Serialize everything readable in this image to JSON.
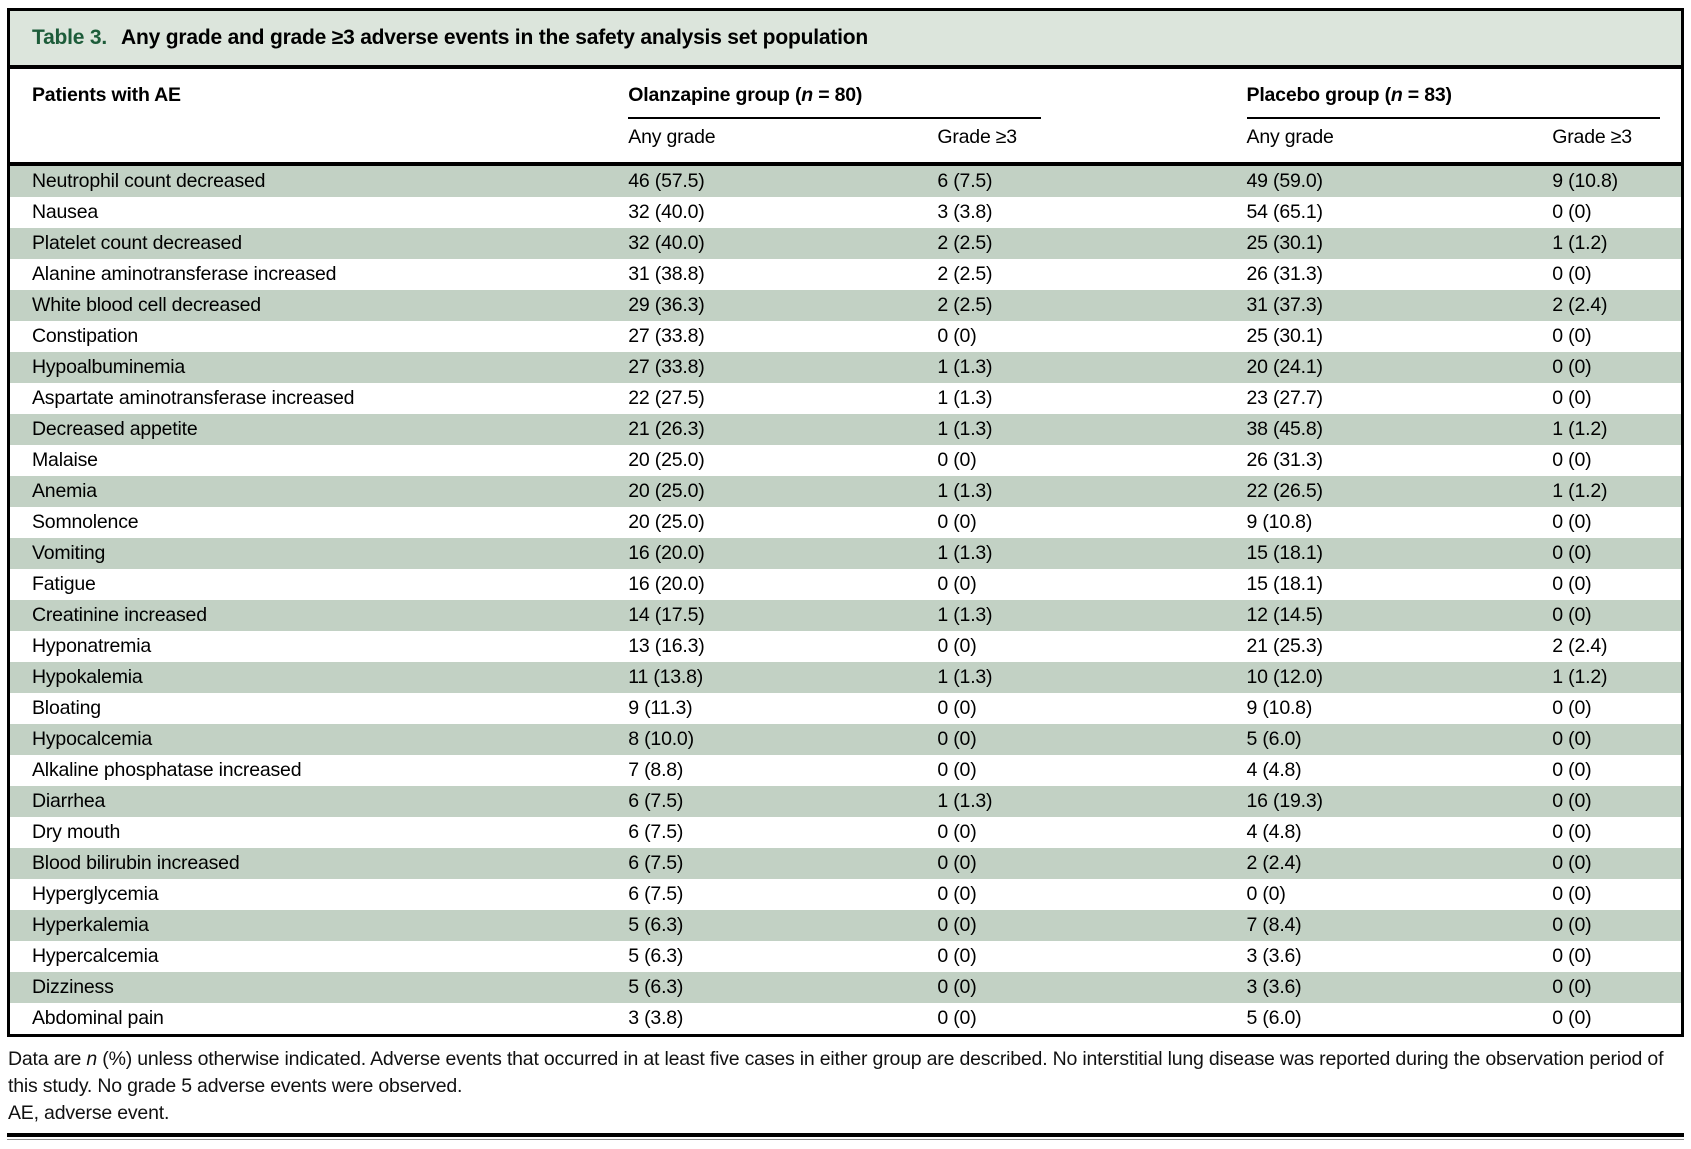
{
  "colors": {
    "accent_green": "#1d5c3a",
    "titlebar_bg": "#dce5dc",
    "row_green": "#c2d1c4",
    "border_black": "#000000"
  },
  "title": {
    "label": "Table 3.",
    "text": "Any grade and grade ≥3 adverse events in the safety analysis set population"
  },
  "header": {
    "col1": "Patients with AE",
    "groups": [
      {
        "prefix": "Olanzapine group (",
        "nvar": "n",
        "rest": " = 80)"
      },
      {
        "prefix": "Placebo group (",
        "nvar": "n",
        "rest": " = 83)"
      }
    ],
    "subheaders": [
      "Any grade",
      "Grade ≥3",
      "Any grade",
      "Grade ≥3"
    ]
  },
  "rows": [
    [
      "Neutrophil count decreased",
      "46 (57.5)",
      "6 (7.5)",
      "49 (59.0)",
      "9 (10.8)"
    ],
    [
      "Nausea",
      "32 (40.0)",
      "3 (3.8)",
      "54 (65.1)",
      "0 (0)"
    ],
    [
      "Platelet count decreased",
      "32 (40.0)",
      "2 (2.5)",
      "25 (30.1)",
      "1 (1.2)"
    ],
    [
      "Alanine aminotransferase increased",
      "31 (38.8)",
      "2 (2.5)",
      "26 (31.3)",
      "0 (0)"
    ],
    [
      "White blood cell decreased",
      "29 (36.3)",
      "2 (2.5)",
      "31 (37.3)",
      "2 (2.4)"
    ],
    [
      "Constipation",
      "27 (33.8)",
      "0 (0)",
      "25 (30.1)",
      "0 (0)"
    ],
    [
      "Hypoalbuminemia",
      "27 (33.8)",
      "1 (1.3)",
      "20 (24.1)",
      "0 (0)"
    ],
    [
      "Aspartate aminotransferase increased",
      "22 (27.5)",
      "1 (1.3)",
      "23 (27.7)",
      "0 (0)"
    ],
    [
      "Decreased appetite",
      "21 (26.3)",
      "1 (1.3)",
      "38 (45.8)",
      "1 (1.2)"
    ],
    [
      "Malaise",
      "20 (25.0)",
      "0 (0)",
      "26 (31.3)",
      "0 (0)"
    ],
    [
      "Anemia",
      "20 (25.0)",
      "1 (1.3)",
      "22 (26.5)",
      "1 (1.2)"
    ],
    [
      "Somnolence",
      "20 (25.0)",
      "0 (0)",
      "9 (10.8)",
      "0 (0)"
    ],
    [
      "Vomiting",
      "16 (20.0)",
      "1 (1.3)",
      "15 (18.1)",
      "0 (0)"
    ],
    [
      "Fatigue",
      "16 (20.0)",
      "0 (0)",
      "15 (18.1)",
      "0 (0)"
    ],
    [
      "Creatinine increased",
      "14 (17.5)",
      "1 (1.3)",
      "12 (14.5)",
      "0 (0)"
    ],
    [
      "Hyponatremia",
      "13 (16.3)",
      "0 (0)",
      "21 (25.3)",
      "2 (2.4)"
    ],
    [
      "Hypokalemia",
      "11 (13.8)",
      "1 (1.3)",
      "10 (12.0)",
      "1 (1.2)"
    ],
    [
      "Bloating",
      "9 (11.3)",
      "0 (0)",
      "9 (10.8)",
      "0 (0)"
    ],
    [
      "Hypocalcemia",
      "8 (10.0)",
      "0 (0)",
      "5 (6.0)",
      "0 (0)"
    ],
    [
      "Alkaline phosphatase increased",
      "7 (8.8)",
      "0 (0)",
      "4 (4.8)",
      "0 (0)"
    ],
    [
      "Diarrhea",
      "6 (7.5)",
      "1 (1.3)",
      "16 (19.3)",
      "0 (0)"
    ],
    [
      "Dry mouth",
      "6 (7.5)",
      "0 (0)",
      "4 (4.8)",
      "0 (0)"
    ],
    [
      "Blood bilirubin increased",
      "6 (7.5)",
      "0 (0)",
      "2 (2.4)",
      "0 (0)"
    ],
    [
      "Hyperglycemia",
      "6 (7.5)",
      "0 (0)",
      "0 (0)",
      "0 (0)"
    ],
    [
      "Hyperkalemia",
      "5 (6.3)",
      "0 (0)",
      "7 (8.4)",
      "0 (0)"
    ],
    [
      "Hypercalcemia",
      "5 (6.3)",
      "0 (0)",
      "3 (3.6)",
      "0 (0)"
    ],
    [
      "Dizziness",
      "5 (6.3)",
      "0 (0)",
      "3 (3.6)",
      "0 (0)"
    ],
    [
      "Abdominal pain",
      "3 (3.8)",
      "0 (0)",
      "5 (6.0)",
      "0 (0)"
    ]
  ],
  "footnotes": {
    "line1_pre": "Data are ",
    "line1_n": "n",
    "line1_post": " (%) unless otherwise indicated. Adverse events that occurred in at least five cases in either group are described. No interstitial lung disease was reported during the observation period of this study. No grade 5 adverse events were observed.",
    "line2": "AE, adverse event."
  }
}
